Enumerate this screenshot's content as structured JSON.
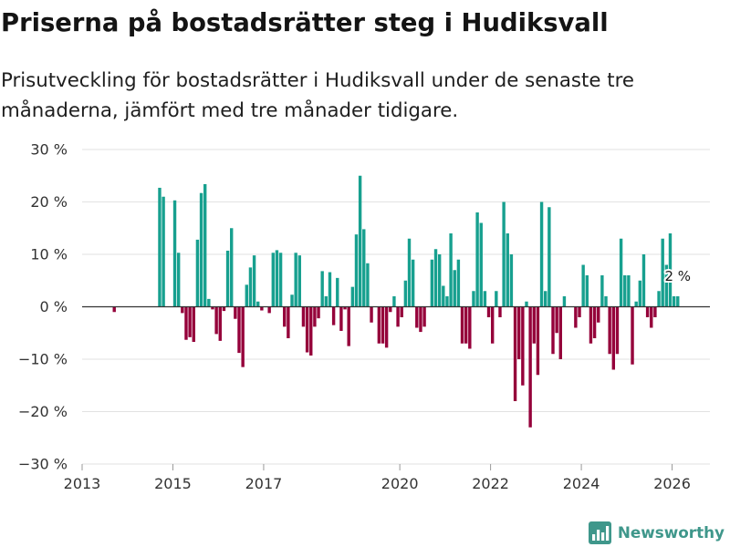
{
  "colors": {
    "positive": "#17a08f",
    "negative": "#95003a",
    "zero_line": "#333333",
    "grid": "#e2e2e2",
    "tick": "#999999"
  },
  "logo": {
    "text": "Newsworthy",
    "icon": "bar-chart-icon",
    "color": "#3f978b"
  },
  "chart_data": {
    "type": "bar",
    "title": "Priserna på bostadsrätter steg i Hudiksvall",
    "subtitle": "Prisutveckling för bostadsrätter i Hudiksvall under de senaste tre månaderna, jämfört med tre månader tidigare.",
    "xlim": [
      "2013-01",
      "2026-11"
    ],
    "ylim": [
      -30,
      30
    ],
    "grid": true,
    "yticks": [
      30,
      20,
      10,
      0,
      -10,
      -20,
      -30
    ],
    "ytick_labels": [
      "30 %",
      "20 %",
      "10 %",
      "0 %",
      "−10 %",
      "−20 %",
      "−30 %"
    ],
    "xticks": [
      "2013-01",
      "2015-01",
      "2017-01",
      "2020-01",
      "2022-01",
      "2024-01",
      "2026-01"
    ],
    "xtick_labels": [
      "2013",
      "2015",
      "2017",
      "2020",
      "2022",
      "2024",
      "2026"
    ],
    "annotation": {
      "x": "2026-02",
      "text": "2 %"
    },
    "x": [
      "2013-09",
      "2014-09",
      "2014-10",
      "2015-01",
      "2015-02",
      "2015-03",
      "2015-04",
      "2015-05",
      "2015-06",
      "2015-07",
      "2015-08",
      "2015-09",
      "2015-10",
      "2015-11",
      "2015-12",
      "2016-01",
      "2016-02",
      "2016-03",
      "2016-04",
      "2016-05",
      "2016-06",
      "2016-07",
      "2016-08",
      "2016-09",
      "2016-10",
      "2016-11",
      "2016-12",
      "2017-01",
      "2017-02",
      "2017-03",
      "2017-04",
      "2017-05",
      "2017-06",
      "2017-07",
      "2017-08",
      "2017-09",
      "2017-10",
      "2017-11",
      "2017-12",
      "2018-01",
      "2018-02",
      "2018-03",
      "2018-04",
      "2018-05",
      "2018-06",
      "2018-07",
      "2018-08",
      "2018-09",
      "2018-10",
      "2018-11",
      "2018-12",
      "2019-01",
      "2019-02",
      "2019-03",
      "2019-04",
      "2019-05",
      "2019-06",
      "2019-07",
      "2019-08",
      "2019-09",
      "2019-10",
      "2019-11",
      "2019-12",
      "2020-01",
      "2020-02",
      "2020-03",
      "2020-04",
      "2020-05",
      "2020-06",
      "2020-07",
      "2020-08",
      "2020-09",
      "2020-10",
      "2020-11",
      "2020-12",
      "2021-01",
      "2021-02",
      "2021-03",
      "2021-04",
      "2021-05",
      "2021-06",
      "2021-07",
      "2021-08",
      "2021-09",
      "2021-10",
      "2021-11",
      "2021-12",
      "2022-01",
      "2022-02",
      "2022-03",
      "2022-04",
      "2022-05",
      "2022-06",
      "2022-07",
      "2022-08",
      "2022-09",
      "2022-10",
      "2022-11",
      "2022-12",
      "2023-01",
      "2023-02",
      "2023-03",
      "2023-04",
      "2023-05",
      "2023-06",
      "2023-07",
      "2023-08",
      "2023-09",
      "2023-10",
      "2023-11",
      "2023-12",
      "2024-01",
      "2024-02",
      "2024-03",
      "2024-04",
      "2024-05",
      "2024-06",
      "2024-07",
      "2024-08",
      "2024-09",
      "2024-10",
      "2024-11",
      "2024-12",
      "2025-01",
      "2025-02",
      "2025-03",
      "2025-04",
      "2025-05",
      "2025-06",
      "2025-07",
      "2025-08",
      "2025-09",
      "2025-10",
      "2025-11",
      "2025-12",
      "2026-01",
      "2026-02"
    ],
    "values": [
      -1.0,
      22.7,
      21.0,
      20.3,
      10.3,
      -1.2,
      -6.3,
      -5.8,
      -6.7,
      12.8,
      21.7,
      23.4,
      1.5,
      -0.5,
      -5.2,
      -6.5,
      -0.8,
      10.7,
      15.0,
      -2.3,
      -8.8,
      -11.5,
      4.2,
      7.5,
      9.8,
      1.0,
      -0.7,
      0,
      -1.2,
      10.3,
      10.8,
      10.3,
      -3.8,
      -6.0,
      2.3,
      10.3,
      9.8,
      -3.8,
      -8.7,
      -9.3,
      -3.8,
      -2.2,
      6.8,
      2.0,
      6.6,
      -3.5,
      5.5,
      -4.6,
      -0.5,
      -7.5,
      3.8,
      13.8,
      25.0,
      14.8,
      8.3,
      -3.0,
      0,
      -7.0,
      -7.0,
      -7.8,
      -1.0,
      2.0,
      -3.8,
      -2.0,
      5.0,
      13.0,
      9.0,
      -4.0,
      -4.8,
      -3.8,
      0,
      9.0,
      11.0,
      10.0,
      4.0,
      2.0,
      14.0,
      7.0,
      9.0,
      -7.0,
      -7.0,
      -8.0,
      3.0,
      18.0,
      16.0,
      3.0,
      -2.0,
      -7.0,
      3.0,
      -2.0,
      20.0,
      14.0,
      10.0,
      -18.0,
      -10.0,
      -15.0,
      1.0,
      -23.0,
      -7.0,
      -13.0,
      20.0,
      3.0,
      19.0,
      -9.0,
      -5.0,
      -10.0,
      2.0,
      0,
      0,
      -4.0,
      -2.0,
      8.0,
      6.0,
      -7.0,
      -6.0,
      -3.0,
      6.0,
      2.0,
      -9.0,
      -12.0,
      -9.0,
      13.0,
      6.0,
      6.0,
      -11.0,
      1.0,
      5.0,
      10.0,
      -2.0,
      -4.0,
      -2.0,
      3.0,
      13.0,
      8.0,
      14.0,
      2.0,
      2.0
    ]
  }
}
